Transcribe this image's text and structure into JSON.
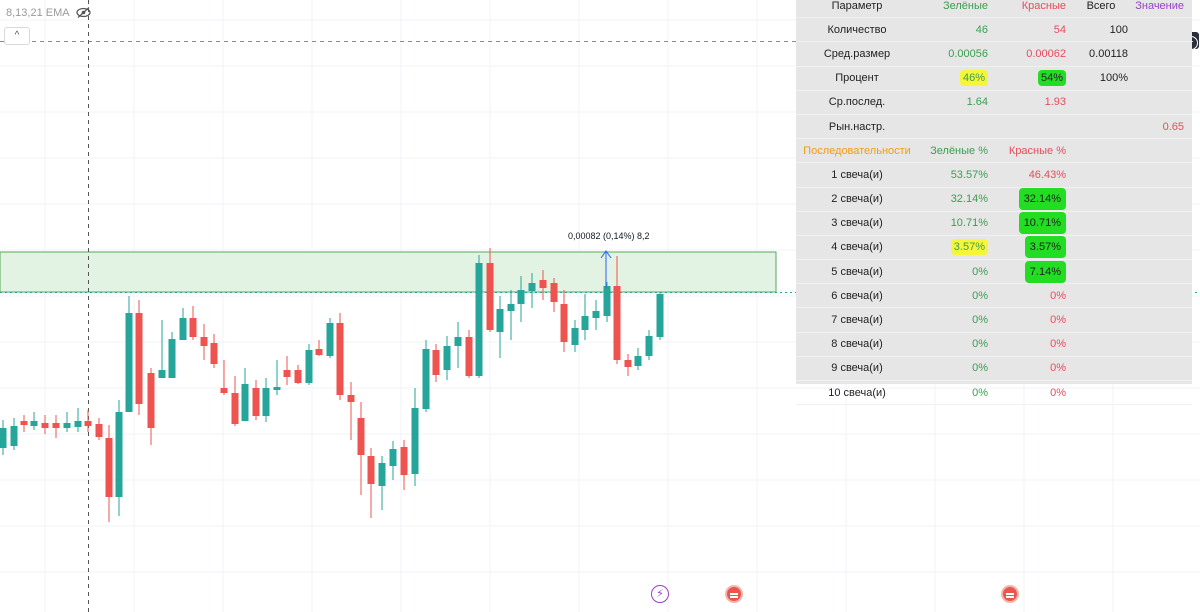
{
  "indicator": {
    "label": "8,13,21 EMA",
    "collapse_glyph": "^",
    "add_glyph": "+"
  },
  "annotation": "0,00082 (0,14%) 8,2",
  "colors": {
    "bull": "#26a69a",
    "bear": "#ef5350",
    "zone_fill": "#e3f3e3",
    "zone_border": "#5aaa5a",
    "table_bg": "#e6e6e6"
  },
  "stats": {
    "header": [
      "Параметр",
      "Зелёные",
      "Красные",
      "Всего",
      "Значение"
    ],
    "rows": [
      {
        "label": "Количество",
        "green": "46",
        "red": "54",
        "total": "100",
        "value": ""
      },
      {
        "label": "Сред.размер",
        "green": "0.00056",
        "red": "0.00062",
        "total": "0.00118",
        "value": ""
      },
      {
        "label": "Процент",
        "green": "46%",
        "red": "54%",
        "total": "100%",
        "value": ""
      },
      {
        "label": "Ср.послед.",
        "green": "1.64",
        "red": "1.93",
        "total": "",
        "value": ""
      },
      {
        "label": "Рын.настр.",
        "green": "",
        "red": "",
        "total": "",
        "value": "0.65"
      }
    ],
    "seq_header": [
      "Последовательности",
      "Зелёные %",
      "Красные %"
    ],
    "sequences": [
      {
        "label": "1 свеча(и)",
        "green": "53.57%",
        "red": "46.43%"
      },
      {
        "label": "2 свеча(и)",
        "green": "32.14%",
        "red": "32.14%"
      },
      {
        "label": "3 свеча(и)",
        "green": "10.71%",
        "red": "10.71%"
      },
      {
        "label": "4 свеча(и)",
        "green": "3.57%",
        "red": "3.57%"
      },
      {
        "label": "5 свеча(и)",
        "green": "0%",
        "red": "7.14%"
      },
      {
        "label": "6 свеча(и)",
        "green": "0%",
        "red": "0%"
      },
      {
        "label": "7 свеча(и)",
        "green": "0%",
        "red": "0%"
      },
      {
        "label": "8 свеча(и)",
        "green": "0%",
        "red": "0%"
      },
      {
        "label": "9 свеча(и)",
        "green": "0%",
        "red": "0%"
      },
      {
        "label": "10 свеча(и)",
        "green": "0%",
        "red": "0%"
      }
    ]
  },
  "bottom_icons": [
    "lightning-icon",
    "us-flag-icon",
    "us-flag-icon"
  ]
}
